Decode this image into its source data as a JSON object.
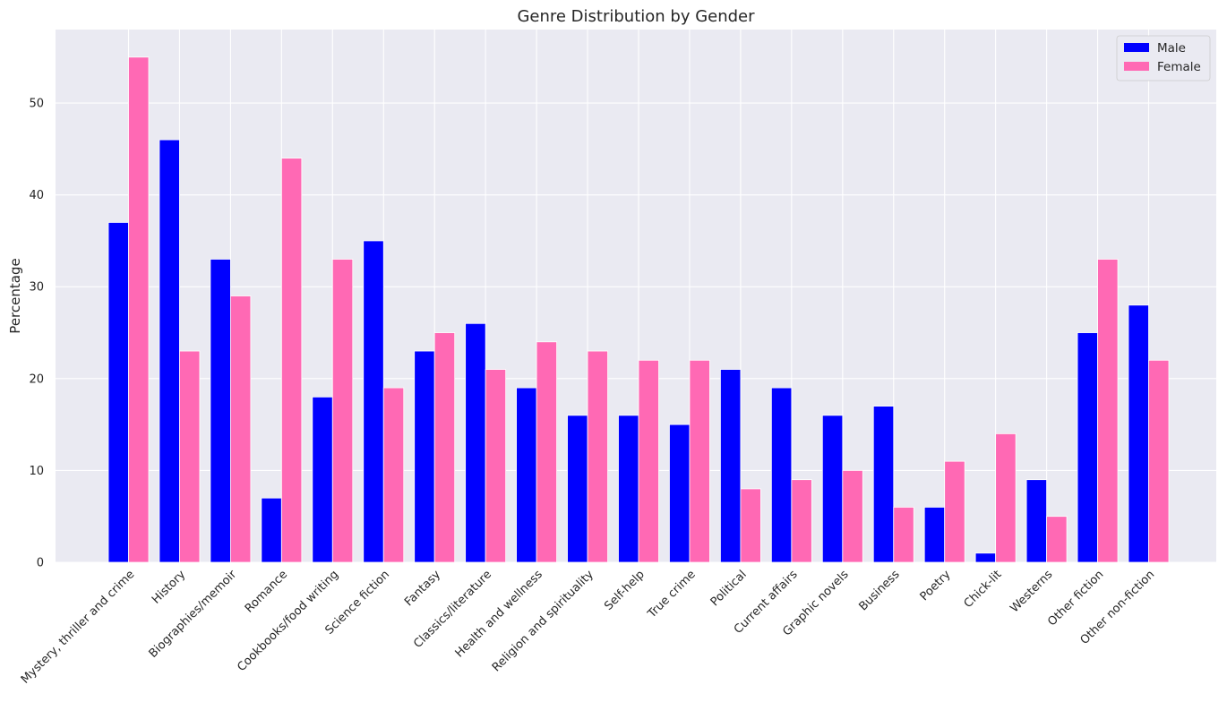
{
  "chart_data": {
    "type": "bar",
    "title": "Genre Distribution by Gender",
    "xlabel": "",
    "ylabel": "Percentage",
    "ylim": [
      0,
      58
    ],
    "yticks": [
      0,
      10,
      20,
      30,
      40,
      50
    ],
    "grid": true,
    "legend_position": "top-right",
    "categories": [
      "Mystery, thriller and crime",
      "History",
      "Biographies/memoir",
      "Romance",
      "Cookbooks/food writing",
      "Science fiction",
      "Fantasy",
      "Classics/literature",
      "Health and wellness",
      "Religion and spirituality",
      "Self-help",
      "True crime",
      "Political",
      "Current affairs",
      "Graphic novels",
      "Business",
      "Poetry",
      "Chick-lit",
      "Westerns",
      "Other fiction",
      "Other non-fiction"
    ],
    "series": [
      {
        "name": "Male",
        "color": "#0000ff",
        "values": [
          37,
          46,
          33,
          7,
          18,
          35,
          23,
          26,
          19,
          16,
          16,
          15,
          21,
          19,
          16,
          17,
          6,
          1,
          9,
          25,
          28
        ]
      },
      {
        "name": "Female",
        "color": "#ff69b4",
        "values": [
          55,
          23,
          29,
          44,
          33,
          19,
          25,
          21,
          24,
          23,
          22,
          22,
          8,
          9,
          10,
          6,
          11,
          14,
          5,
          33,
          22
        ]
      }
    ]
  },
  "colors": {
    "plot_background": "#eaeaf2",
    "grid": "#ffffff"
  }
}
